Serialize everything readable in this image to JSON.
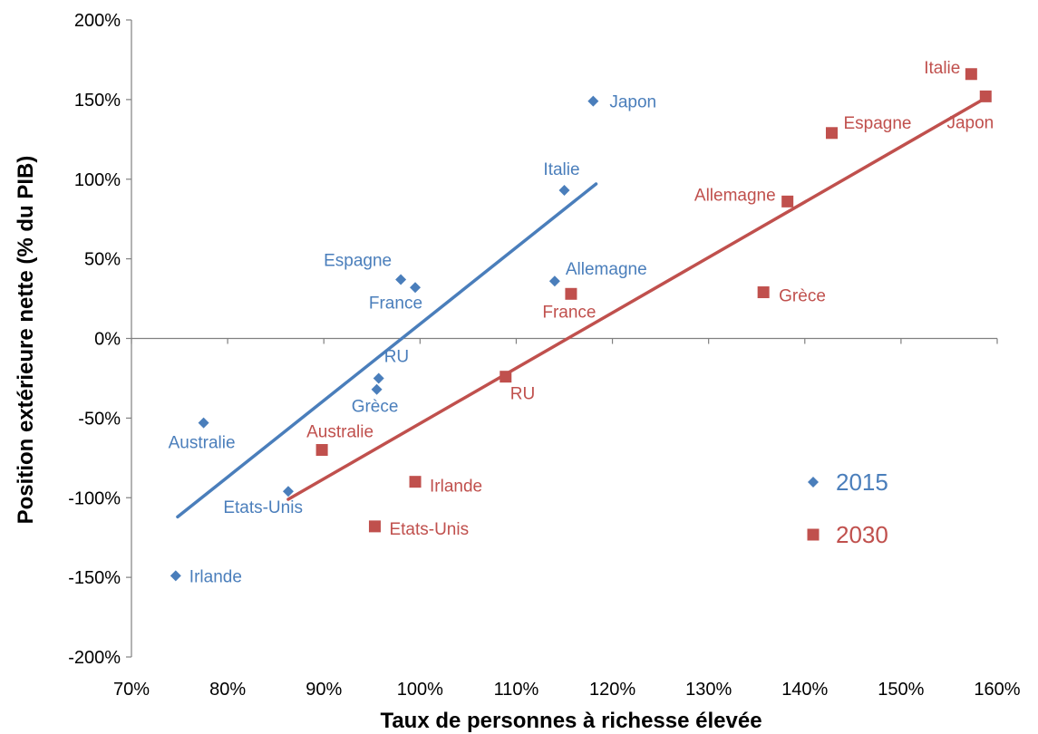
{
  "chart_data": {
    "type": "scatter",
    "xlabel": "Taux de personnes à richesse élevée",
    "ylabel": "Position extérieure nette (% du PIB)",
    "xlim": [
      70,
      160
    ],
    "ylim": [
      -200,
      200
    ],
    "x_ticks": [
      "70%",
      "80%",
      "90%",
      "100%",
      "110%",
      "120%",
      "130%",
      "140%",
      "150%",
      "160%"
    ],
    "y_ticks": [
      "200%",
      "150%",
      "100%",
      "50%",
      "0%",
      "-50%",
      "-100%",
      "-150%",
      "-200%"
    ],
    "grid": false,
    "legend_position": "bottom-right",
    "series": [
      {
        "name": "2015",
        "color": "#4a7ebb",
        "marker": "diamond",
        "points": [
          {
            "label": "Japon",
            "x": 118.0,
            "y": 149
          },
          {
            "label": "Italie",
            "x": 115.0,
            "y": 93
          },
          {
            "label": "Allemagne",
            "x": 114.0,
            "y": 36
          },
          {
            "label": "Espagne",
            "x": 98.0,
            "y": 37
          },
          {
            "label": "France",
            "x": 99.5,
            "y": 32
          },
          {
            "label": "RU",
            "x": 95.7,
            "y": -25
          },
          {
            "label": "Grèce",
            "x": 95.5,
            "y": -32
          },
          {
            "label": "Australie",
            "x": 77.5,
            "y": -53
          },
          {
            "label": "Etats-Unis",
            "x": 86.3,
            "y": -96
          },
          {
            "label": "Irlande",
            "x": 74.6,
            "y": -149
          }
        ],
        "trendline": {
          "x": [
            74.8,
            118.3
          ],
          "y": [
            -112,
            97
          ]
        }
      },
      {
        "name": "2030",
        "color": "#c0504d",
        "marker": "square",
        "points": [
          {
            "label": "Italie",
            "x": 157.3,
            "y": 166
          },
          {
            "label": "Japon",
            "x": 158.8,
            "y": 152
          },
          {
            "label": "Espagne",
            "x": 142.8,
            "y": 129
          },
          {
            "label": "Allemagne",
            "x": 138.2,
            "y": 86
          },
          {
            "label": "Grèce",
            "x": 135.7,
            "y": 29
          },
          {
            "label": "France",
            "x": 115.7,
            "y": 28
          },
          {
            "label": "RU",
            "x": 108.9,
            "y": -24
          },
          {
            "label": "Australie",
            "x": 89.8,
            "y": -70
          },
          {
            "label": "Irlande",
            "x": 99.5,
            "y": -90
          },
          {
            "label": "Etats-Unis",
            "x": 95.3,
            "y": -118
          }
        ],
        "trendline": {
          "x": [
            86.3,
            158.8
          ],
          "y": [
            -101,
            151
          ]
        }
      }
    ]
  }
}
